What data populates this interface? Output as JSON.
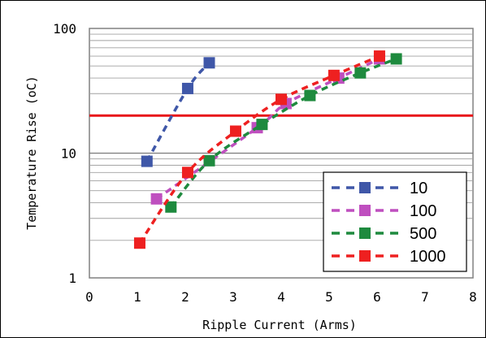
{
  "chart_data": {
    "type": "scatter",
    "title": "",
    "xlabel": "Ripple Current (Arms)",
    "ylabel": "Temperature Rise (oC)",
    "xlim": [
      0,
      8
    ],
    "ylim": [
      1,
      100
    ],
    "y_scale": "log",
    "grid": true,
    "legend_position": "bottom-right",
    "x_ticks": [
      "0",
      "1",
      "2",
      "3",
      "4",
      "5",
      "6",
      "7",
      "8"
    ],
    "y_ticks": [
      "1",
      "10",
      "100"
    ],
    "reference_line": {
      "y": 20,
      "color": "#e8171a"
    },
    "series": [
      {
        "name": "10",
        "color": "#3f57a8",
        "x": [
          1.2,
          2.05,
          2.5
        ],
        "y": [
          8.6,
          33,
          53
        ]
      },
      {
        "name": "100",
        "color": "#bf4fbf",
        "x": [
          1.4,
          3.5,
          4.1,
          5.2,
          6.05
        ],
        "y": [
          4.3,
          16,
          25,
          40,
          57
        ]
      },
      {
        "name": "500",
        "color": "#1e8a3e",
        "x": [
          1.7,
          2.5,
          3.6,
          4.6,
          5.65,
          6.4
        ],
        "y": [
          3.7,
          8.7,
          17,
          29,
          44,
          57
        ]
      },
      {
        "name": "1000",
        "color": "#ee2020",
        "x": [
          1.05,
          2.05,
          3.05,
          4.0,
          5.1,
          6.05
        ],
        "y": [
          1.9,
          7.0,
          15,
          27,
          42,
          60
        ]
      }
    ]
  }
}
